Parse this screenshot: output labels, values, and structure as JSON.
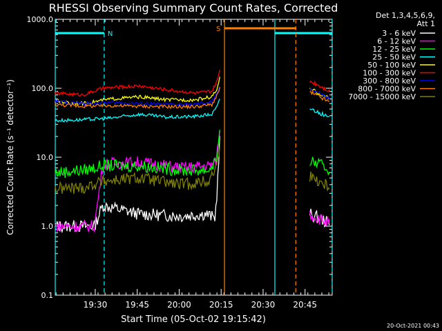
{
  "chart_data": {
    "type": "line",
    "title": "RHESSI Observing Summary Count Rates, Corrected",
    "xlabel": "Start Time (05-Oct-02 19:15:42)",
    "ylabel": "Corrected Count Rate (s⁻¹ detector⁻¹)",
    "yscale": "log",
    "ylim": [
      0.1,
      1000
    ],
    "xlim_minutes_after_start": [
      0,
      99
    ],
    "x_ticks": [
      {
        "label": "19:30",
        "t": 14.3
      },
      {
        "label": "19:45",
        "t": 29.3
      },
      {
        "label": "20:00",
        "t": 44.3
      },
      {
        "label": "20:15",
        "t": 59.3
      },
      {
        "label": "20:30",
        "t": 74.3
      },
      {
        "label": "20:45",
        "t": 89.3
      }
    ],
    "y_ticks": [
      "0.1",
      "1.0",
      "10.0",
      "100.0",
      "1000.0"
    ],
    "legend_header": [
      "Det 1,3,4,5,6,9,",
      "Att 1"
    ],
    "annotation_date": "20-Oct-2021 00:43",
    "flags": [
      {
        "label": "N",
        "color": "#00ffff",
        "intervals": [
          [
            0,
            17.5
          ],
          [
            78.5,
            99
          ]
        ]
      },
      {
        "label": "S",
        "color": "#ff8000",
        "intervals": [
          [
            60.5,
            86
          ]
        ]
      }
    ],
    "series": [
      {
        "name": "3 - 6 keV",
        "color": "#ffffff",
        "x": [
          0,
          14,
          17,
          30,
          45,
          54,
          57,
          57.5,
          58,
          59
        ],
        "y": [
          1.0,
          1.0,
          2.0,
          1.5,
          1.4,
          1.5,
          1.3,
          2.0,
          4.0,
          25
        ]
      },
      {
        "name": "6 - 12 keV",
        "color": "#ff00ff",
        "x": [
          0,
          14,
          17,
          30,
          45,
          55,
          57,
          58,
          59
        ],
        "y": [
          1.0,
          1.0,
          8.0,
          8.5,
          7.0,
          7.5,
          8.0,
          12,
          30
        ]
      },
      {
        "name": "12 - 25 keV",
        "color": "#00ff00",
        "x": [
          0,
          10,
          17,
          30,
          45,
          55,
          58,
          59
        ],
        "y": [
          6.0,
          6.5,
          7.5,
          7.5,
          6.5,
          6.5,
          10,
          25
        ]
      },
      {
        "name": "25 - 50 keV",
        "color": "#00ffff",
        "x": [
          0,
          10,
          20,
          30,
          40,
          50,
          56,
          58,
          59
        ],
        "y": [
          34,
          35,
          37,
          42,
          38,
          39,
          42,
          55,
          75
        ]
      },
      {
        "name": "50 - 100 keV",
        "color": "#ffff00",
        "x": [
          0,
          10,
          20,
          30,
          40,
          50,
          56,
          58,
          59
        ],
        "y": [
          65,
          60,
          70,
          75,
          68,
          68,
          75,
          100,
          150
        ]
      },
      {
        "name": "100 - 300 keV",
        "color": "#ff0000",
        "x": [
          0,
          10,
          17,
          30,
          40,
          50,
          56,
          58,
          59
        ],
        "y": [
          85,
          80,
          100,
          108,
          95,
          85,
          90,
          130,
          200
        ]
      },
      {
        "name": "300 - 800 keV",
        "color": "#0000ff",
        "x": [
          0,
          10,
          20,
          30,
          40,
          50,
          56,
          58,
          59
        ],
        "y": [
          65,
          60,
          62,
          60,
          58,
          58,
          63,
          85,
          120
        ]
      },
      {
        "name": "800 - 7000 keV",
        "color": "#ff8000",
        "x": [
          0,
          10,
          20,
          30,
          40,
          50,
          56,
          58,
          59
        ],
        "y": [
          58,
          55,
          56,
          55,
          54,
          54,
          58,
          80,
          110
        ]
      },
      {
        "name": "7000 - 15000 keV",
        "color": "#808000",
        "x": [
          0,
          10,
          17,
          30,
          45,
          55,
          58,
          59
        ],
        "y": [
          3.5,
          3.6,
          4.5,
          5.0,
          4.0,
          4.5,
          8,
          20
        ]
      }
    ]
  }
}
